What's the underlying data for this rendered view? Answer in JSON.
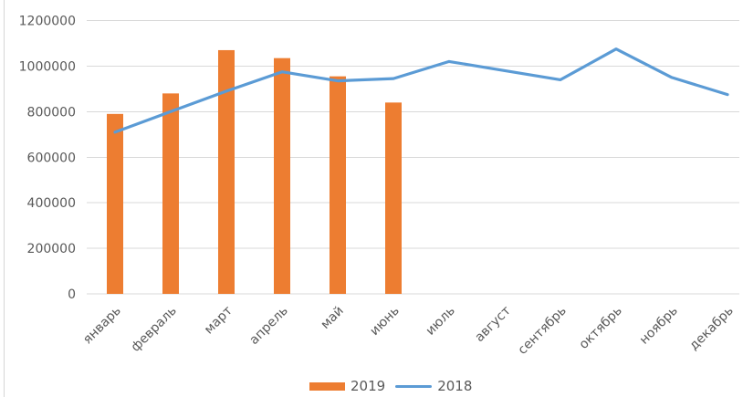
{
  "chart": {
    "background_color": "#ffffff",
    "text_color": "#595959",
    "gridline_color": "#d9d9d9"
  },
  "legend": {
    "position": "bottom-center",
    "items": [
      {
        "label": "2019",
        "marker": "bar-swatch",
        "color": "#ED7D31"
      },
      {
        "label": "2018",
        "marker": "line-swatch",
        "color": "#5B9BD5"
      }
    ]
  },
  "chart_data": {
    "type": "combo",
    "title": "",
    "xlabel": "",
    "ylabel": "",
    "categories": [
      "январь",
      "февраль",
      "март",
      "апрель",
      "май",
      "июнь",
      "июль",
      "август",
      "сентябрь",
      "октябрь",
      "ноябрь",
      "декабрь"
    ],
    "series": [
      {
        "name": "2019",
        "type": "bar",
        "color": "#ED7D31",
        "values": [
          790000,
          880000,
          1070000,
          1035000,
          955000,
          840000,
          null,
          null,
          null,
          null,
          null,
          null
        ]
      },
      {
        "name": "2018",
        "type": "line",
        "color": "#5B9BD5",
        "values": [
          710000,
          800000,
          890000,
          975000,
          935000,
          945000,
          1020000,
          980000,
          940000,
          1075000,
          950000,
          875000
        ]
      }
    ],
    "ylim": [
      0,
      1200000
    ],
    "y_ticks": [
      0,
      200000,
      400000,
      600000,
      800000,
      1000000,
      1200000
    ],
    "grid": true,
    "x_label_rotation_deg": 45,
    "legend_position": "bottom"
  }
}
